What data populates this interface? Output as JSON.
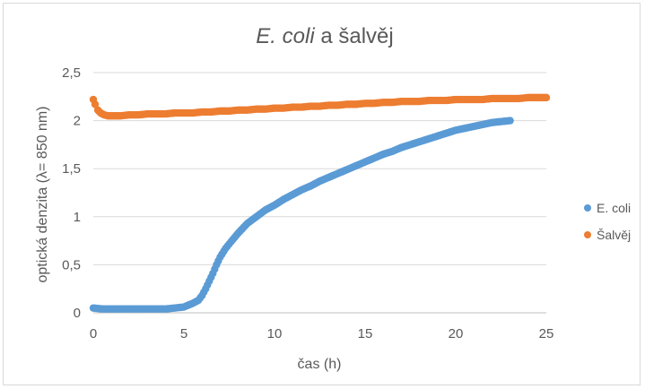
{
  "chart_data": {
    "type": "scatter",
    "title_italic": "E. coli",
    "title_rest": " a šalvěj",
    "xlabel": "čas (h)",
    "ylabel": "optická denzita (λ= 850 nm)",
    "xlim": [
      0,
      25
    ],
    "ylim": [
      0,
      2.5
    ],
    "xticks": [
      "0",
      "5",
      "10",
      "15",
      "20",
      "25"
    ],
    "yticks": [
      "0",
      "0,5",
      "1",
      "1,5",
      "2",
      "2,5"
    ],
    "grid": "horizontal",
    "legend_position": "right",
    "series": [
      {
        "name": "E. coli",
        "color": "#5b9bd5",
        "x": [
          0,
          0.5,
          1,
          1.5,
          2,
          2.5,
          3,
          3.5,
          4,
          4.5,
          5,
          5.5,
          5.8,
          6,
          6.2,
          6.4,
          6.6,
          6.8,
          7,
          7.3,
          7.6,
          8,
          8.5,
          9,
          9.5,
          10,
          10.5,
          11,
          11.5,
          12,
          12.5,
          13,
          13.5,
          14,
          14.5,
          15,
          15.5,
          16,
          16.5,
          17,
          17.5,
          18,
          18.5,
          19,
          19.5,
          20,
          20.5,
          21,
          21.5,
          22,
          22.5,
          23
        ],
        "y": [
          0.05,
          0.04,
          0.04,
          0.04,
          0.04,
          0.04,
          0.04,
          0.04,
          0.04,
          0.05,
          0.06,
          0.1,
          0.13,
          0.18,
          0.25,
          0.33,
          0.41,
          0.5,
          0.58,
          0.67,
          0.74,
          0.83,
          0.93,
          1.0,
          1.07,
          1.12,
          1.18,
          1.23,
          1.28,
          1.32,
          1.37,
          1.41,
          1.45,
          1.49,
          1.53,
          1.57,
          1.61,
          1.65,
          1.68,
          1.72,
          1.75,
          1.78,
          1.81,
          1.84,
          1.87,
          1.9,
          1.92,
          1.94,
          1.96,
          1.98,
          1.99,
          2.0
        ]
      },
      {
        "name": "Šalvěj",
        "color": "#ed7d31",
        "x": [
          0,
          0.1,
          0.25,
          0.4,
          0.6,
          0.8,
          1,
          1.5,
          2,
          2.5,
          3,
          3.5,
          4,
          4.5,
          5,
          5.5,
          6,
          6.5,
          7,
          7.5,
          8,
          8.5,
          9,
          9.5,
          10,
          10.5,
          11,
          11.5,
          12,
          12.5,
          13,
          13.5,
          14,
          14.5,
          15,
          15.5,
          16,
          16.5,
          17,
          17.5,
          18,
          18.5,
          19,
          19.5,
          20,
          20.5,
          21,
          21.5,
          22,
          22.5,
          23,
          23.5,
          24,
          24.5,
          25
        ],
        "y": [
          2.22,
          2.17,
          2.11,
          2.08,
          2.06,
          2.05,
          2.05,
          2.05,
          2.06,
          2.06,
          2.07,
          2.07,
          2.07,
          2.08,
          2.08,
          2.08,
          2.09,
          2.09,
          2.1,
          2.1,
          2.11,
          2.11,
          2.12,
          2.12,
          2.13,
          2.13,
          2.14,
          2.14,
          2.15,
          2.15,
          2.16,
          2.16,
          2.17,
          2.17,
          2.18,
          2.18,
          2.19,
          2.19,
          2.2,
          2.2,
          2.2,
          2.21,
          2.21,
          2.21,
          2.22,
          2.22,
          2.22,
          2.22,
          2.23,
          2.23,
          2.23,
          2.23,
          2.24,
          2.24,
          2.24
        ]
      }
    ]
  }
}
